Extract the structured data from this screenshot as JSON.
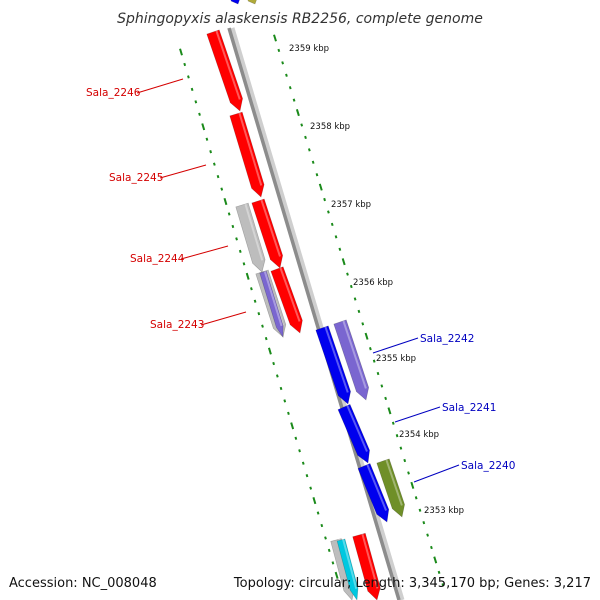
{
  "title": "Sphingopyxis alaskensis RB2256, complete genome",
  "accession_text": "Accession: NC_008048",
  "topology_text": "Topology: circular; Length: 3,345,170 bp; Genes: 3,217",
  "colors": {
    "backbone": "#8c8c8c",
    "ruler": "#1a8a1a",
    "forward_label": "#d40000",
    "reverse_label": "#0000c0",
    "red_gene": "#ff0000",
    "blue_gene": "#0000ee",
    "purple_gene": "#7a66d0",
    "gray_gene": "#bdbdbd",
    "olive_gene": "#6f8f28",
    "cyan_gene": "#00c8e0"
  },
  "ruler_labels": [
    "2359 kbp",
    "2358 kbp",
    "2357 kbp",
    "2356 kbp",
    "2355 kbp",
    "2354 kbp",
    "2353 kbp"
  ],
  "gene_labels": [
    "Sala_2246",
    "Sala_2245",
    "Sala_2244",
    "Sala_2243",
    "Sala_2242",
    "Sala_2241",
    "Sala_2240"
  ]
}
